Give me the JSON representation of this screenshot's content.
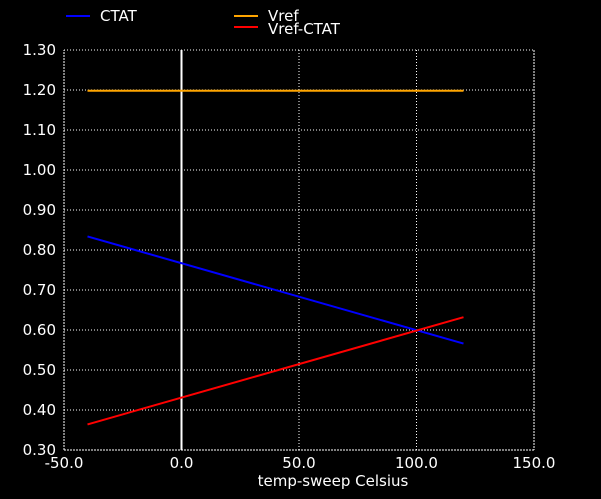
{
  "chart_data": {
    "type": "line",
    "title": "",
    "xlabel": "temp-sweep  Celsius",
    "ylabel": "",
    "xlim": [
      -50,
      150
    ],
    "ylim": [
      0.3,
      1.3
    ],
    "xticks": [
      -50,
      0,
      50,
      100,
      150
    ],
    "xtick_labels": [
      "-50.0",
      "0.0",
      "50.0",
      "100.0",
      "150.0"
    ],
    "yticks": [
      0.3,
      0.4,
      0.5,
      0.6,
      0.7,
      0.8,
      0.9,
      1.0,
      1.1,
      1.2,
      1.3
    ],
    "ytick_labels": [
      "0.30",
      "0.40",
      "0.50",
      "0.60",
      "0.70",
      "0.80",
      "0.90",
      "1.00",
      "1.10",
      "1.20",
      "1.30"
    ],
    "grid": true,
    "legend_position": "top",
    "series": [
      {
        "name": "CTAT",
        "color": "#0000ff",
        "x": [
          -40,
          120
        ],
        "y": [
          0.834,
          0.566
        ]
      },
      {
        "name": "Vref",
        "color": "#ffa500",
        "x": [
          -40,
          120
        ],
        "y": [
          1.198,
          1.198
        ]
      },
      {
        "name": "Vref-CTAT",
        "color": "#ff0000",
        "x": [
          -40,
          120
        ],
        "y": [
          0.364,
          0.632
        ]
      }
    ]
  }
}
